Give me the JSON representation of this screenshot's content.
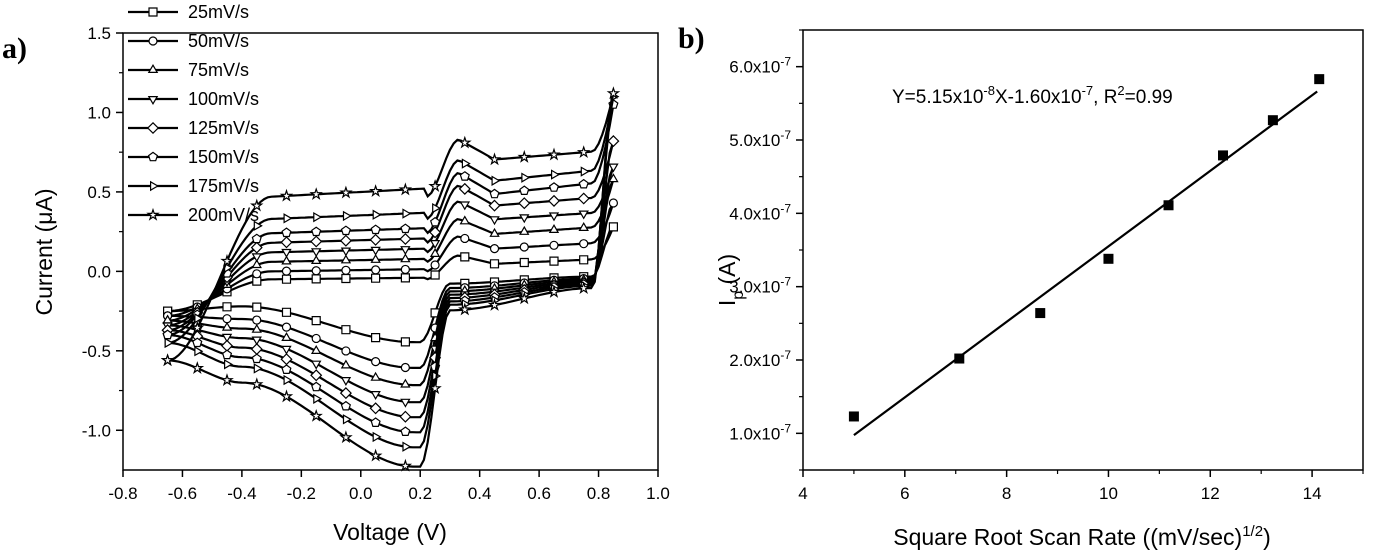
{
  "chart_data": [
    {
      "type": "line",
      "panel_label": "a)",
      "xlabel": "Voltage (V)",
      "ylabel": "Current (μA)",
      "xlim": [
        -0.8,
        1.0
      ],
      "ylim": [
        -1.25,
        1.5
      ],
      "x_ticks": [
        "-0.8",
        "-0.6",
        "-0.4",
        "-0.2",
        "0.0",
        "0.2",
        "0.4",
        "0.6",
        "0.8",
        "1.0"
      ],
      "y_ticks": [
        "-1.0",
        "-0.5",
        "0.0",
        "0.5",
        "1.0",
        "1.5"
      ],
      "x_tick_values": [
        -0.8,
        -0.6,
        -0.4,
        -0.2,
        0.0,
        0.2,
        0.4,
        0.6,
        0.8,
        1.0
      ],
      "y_tick_values": [
        -1.0,
        -0.5,
        0.0,
        0.5,
        1.0,
        1.5
      ],
      "legend_position": "top-left",
      "series": [
        {
          "name": "25mV/s",
          "marker": "square",
          "anodic_plateau": -0.05,
          "anodic_peak": 0.1,
          "anodic_end": 0.28,
          "cathodic_plateau": -0.22,
          "cathodic_peak": -0.33,
          "start_current": -0.25
        },
        {
          "name": "50mV/s",
          "marker": "circle",
          "anodic_plateau": 0.0,
          "anodic_peak": 0.22,
          "anodic_end": 0.43,
          "cathodic_plateau": -0.3,
          "cathodic_peak": -0.45,
          "start_current": -0.28
        },
        {
          "name": "75mV/s",
          "marker": "triangle-up",
          "anodic_plateau": 0.06,
          "anodic_peak": 0.33,
          "anodic_end": 0.58,
          "cathodic_plateau": -0.36,
          "cathodic_peak": -0.53,
          "start_current": -0.31
        },
        {
          "name": "100mV/s",
          "marker": "triangle-down",
          "anodic_plateau": 0.12,
          "anodic_peak": 0.44,
          "anodic_end": 0.66,
          "cathodic_plateau": -0.42,
          "cathodic_peak": -0.61,
          "start_current": -0.34
        },
        {
          "name": "125mV/s",
          "marker": "diamond",
          "anodic_plateau": 0.18,
          "anodic_peak": 0.54,
          "anodic_end": 0.82,
          "cathodic_plateau": -0.48,
          "cathodic_peak": -0.68,
          "start_current": -0.37
        },
        {
          "name": "150mV/s",
          "marker": "pentagon",
          "anodic_plateau": 0.24,
          "anodic_peak": 0.62,
          "anodic_end": 1.05,
          "cathodic_plateau": -0.54,
          "cathodic_peak": -0.75,
          "start_current": -0.4
        },
        {
          "name": "175mV/s",
          "marker": "triangle-right",
          "anodic_plateau": 0.33,
          "anodic_peak": 0.7,
          "anodic_end": 1.1,
          "cathodic_plateau": -0.6,
          "cathodic_peak": -0.82,
          "start_current": -0.45
        },
        {
          "name": "200mV/s",
          "marker": "star",
          "anodic_plateau": 0.47,
          "anodic_peak": 0.83,
          "anodic_end": 1.12,
          "cathodic_plateau": -0.7,
          "cathodic_peak": -0.91,
          "start_current": -0.56
        }
      ]
    },
    {
      "type": "scatter",
      "panel_label": "b)",
      "xlabel": "Square Root Scan Rate ((mV/sec)",
      "xlabel_sup": "1/2",
      "xlabel_end": ")",
      "ylabel_main": "I",
      "ylabel_sub": "p",
      "ylabel_end": " (A)",
      "xlim": [
        4,
        15
      ],
      "ylim": [
        5e-08,
        6.5e-07
      ],
      "x_ticks": [
        "4",
        "6",
        "8",
        "10",
        "12",
        "14"
      ],
      "x_tick_values": [
        4,
        6,
        8,
        10,
        12,
        14
      ],
      "y_tick_values": [
        1e-07,
        2e-07,
        3e-07,
        4e-07,
        5e-07,
        6e-07
      ],
      "y_ticks": [
        {
          "mant": "1.0x10",
          "exp": "-7"
        },
        {
          "mant": "2.0x10",
          "exp": "-7"
        },
        {
          "mant": "3.0x10",
          "exp": "-7"
        },
        {
          "mant": "4.0x10",
          "exp": "-7"
        },
        {
          "mant": "5.0x10",
          "exp": "-7"
        },
        {
          "mant": "6.0x10",
          "exp": "-7"
        }
      ],
      "x": [
        5.0,
        7.07,
        8.66,
        10.0,
        11.18,
        12.25,
        13.23,
        14.14
      ],
      "y": [
        1.23e-07,
        2.02e-07,
        2.64e-07,
        3.38e-07,
        4.11e-07,
        4.79e-07,
        5.27e-07,
        5.83e-07
      ],
      "fit": {
        "slope": 5.15e-08,
        "intercept": -1.6e-07,
        "x_range": [
          5.0,
          14.1
        ]
      },
      "equation": {
        "p1": "Y=5.15x10",
        "e1": "-8",
        "p2": "X-1.60x10",
        "e2": "-7",
        "p3": ", R",
        "e3": "2",
        "p4": "=0.99"
      }
    }
  ]
}
